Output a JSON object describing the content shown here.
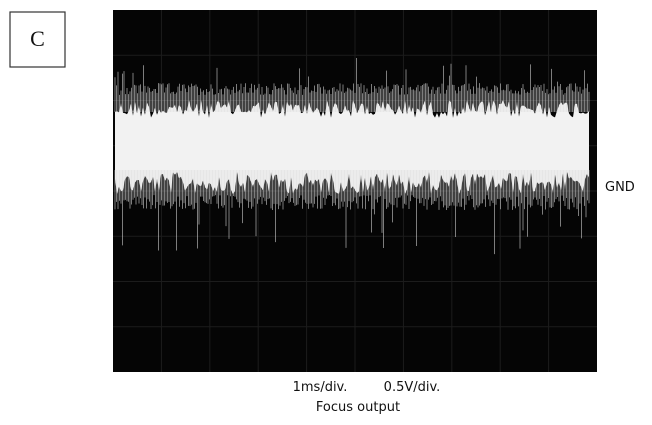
{
  "panel_label": "C",
  "scope": {
    "ground_label": "GND",
    "time_scale": "1ms/div.",
    "voltage_scale": "0.5V/div.",
    "caption": "Focus output"
  }
}
